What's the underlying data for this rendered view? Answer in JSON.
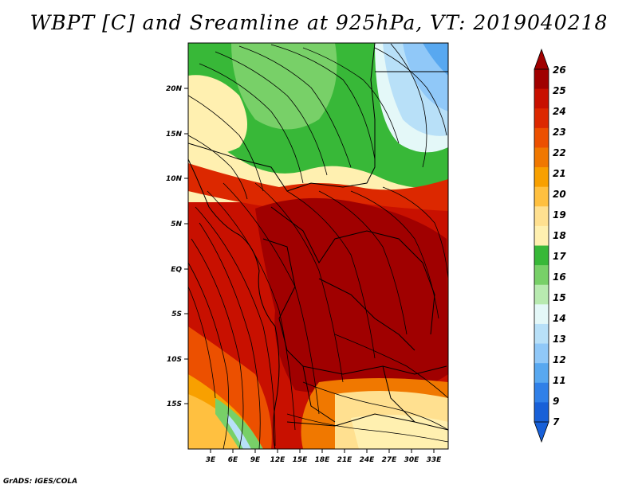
{
  "title": "WBPT [C] and Sreamline at 925hPa, VT: 2019040218",
  "footer": "GrADS: IGES/COLA",
  "axes": {
    "x_labels": [
      "3E",
      "6E",
      "9E",
      "12E",
      "15E",
      "18E",
      "21E",
      "24E",
      "27E",
      "30E",
      "33E"
    ],
    "y_labels": [
      "20N",
      "15N",
      "10N",
      "5N",
      "EQ",
      "5S",
      "10S",
      "15S"
    ]
  },
  "colorbar": {
    "levels": [
      "26",
      "25",
      "24",
      "23",
      "22",
      "21",
      "20",
      "19",
      "18",
      "17",
      "16",
      "15",
      "14",
      "13",
      "12",
      "11",
      "9",
      "7"
    ],
    "colors": [
      "#a00000",
      "#c81000",
      "#dc2800",
      "#ec5000",
      "#f07800",
      "#f8a000",
      "#ffc040",
      "#ffe090",
      "#fff0b0",
      "#38b838",
      "#78d068",
      "#b8eab0",
      "#e4f8f8",
      "#b8e0f8",
      "#90c8f8",
      "#58a8f0",
      "#3080e8",
      "#1860d8"
    ],
    "top_color": "#a00000",
    "bottom_color": "#1860d8"
  }
}
